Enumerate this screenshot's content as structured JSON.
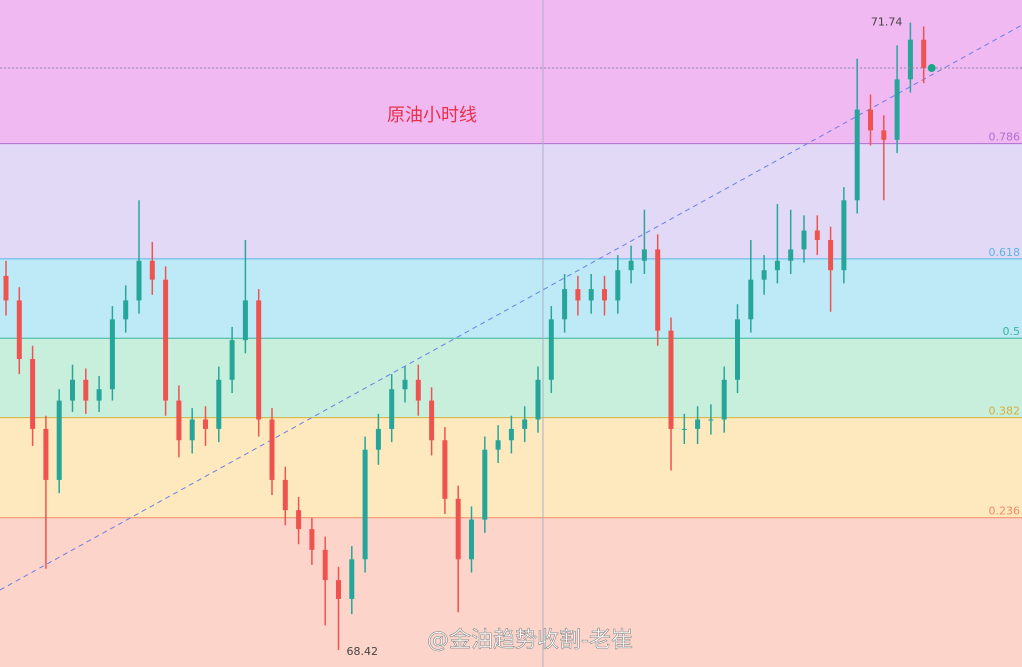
{
  "chart_data": {
    "type": "candlestick",
    "title": "原油小时线",
    "watermark": "@金油趋势收割-老崔",
    "ylim": [
      68.33,
      71.86
    ],
    "up_color": "#26a69a",
    "down_color": "#ef5350",
    "fib_levels": [
      {
        "label": "0.786",
        "value": 71.1,
        "color": "#b06fd0",
        "band": "#e2d9f6"
      },
      {
        "label": "0.618",
        "value": 70.49,
        "color": "#5ab5e8",
        "band": "#bdeaf6"
      },
      {
        "label": "0.5",
        "value": 70.07,
        "color": "#3cb39a",
        "band": "#c8eedc"
      },
      {
        "label": "0.382",
        "value": 69.65,
        "color": "#d4b040",
        "band": "#fde9bd"
      },
      {
        "label": "0.236",
        "value": 69.12,
        "color": "#f08a6a",
        "band": "#fdd4c9"
      }
    ],
    "top_band": "#f1b9f2",
    "open": [
      70.4,
      70.27,
      69.96,
      69.59,
      69.32,
      69.74,
      69.85,
      69.74,
      69.8,
      70.17,
      70.27,
      70.48,
      70.38,
      69.74,
      69.53,
      69.64,
      69.59,
      69.85,
      70.06,
      70.27,
      69.64,
      69.32,
      69.16,
      69.06,
      68.95,
      68.79,
      68.69,
      68.9,
      69.48,
      69.59,
      69.8,
      69.85,
      69.74,
      69.53,
      69.22,
      68.9,
      69.11,
      69.48,
      69.53,
      69.59,
      69.64,
      69.85,
      70.17,
      70.33,
      70.27,
      70.33,
      70.27,
      70.43,
      70.48,
      70.54,
      70.11,
      69.59,
      69.59,
      69.64,
      69.64,
      69.85,
      70.17,
      70.38,
      70.43,
      70.48,
      70.54,
      70.64,
      70.59,
      70.43,
      70.8,
      71.28,
      71.17,
      71.12,
      71.44,
      71.65
    ],
    "high": [
      70.48,
      70.34,
      70.03,
      69.66,
      69.8,
      69.93,
      69.91,
      69.87,
      70.24,
      70.35,
      70.8,
      70.58,
      70.45,
      69.82,
      69.7,
      69.71,
      69.92,
      70.13,
      70.59,
      70.33,
      69.7,
      69.39,
      69.23,
      69.12,
      69.02,
      68.86,
      68.97,
      69.55,
      69.67,
      69.88,
      69.92,
      69.93,
      69.81,
      69.6,
      69.29,
      69.18,
      69.55,
      69.61,
      69.66,
      69.71,
      69.92,
      70.24,
      70.41,
      70.4,
      70.41,
      70.4,
      70.51,
      70.56,
      70.75,
      70.62,
      70.18,
      69.67,
      69.71,
      69.72,
      69.92,
      70.25,
      70.59,
      70.51,
      70.78,
      70.75,
      70.72,
      70.72,
      70.66,
      70.87,
      71.55,
      71.36,
      71.25,
      71.62,
      71.74,
      71.72
    ],
    "low": [
      70.19,
      69.88,
      69.5,
      68.85,
      69.25,
      69.68,
      69.67,
      69.68,
      69.74,
      70.1,
      70.2,
      70.3,
      69.66,
      69.44,
      69.46,
      69.5,
      69.52,
      69.78,
      69.99,
      69.55,
      69.24,
      69.08,
      68.98,
      68.87,
      68.55,
      68.42,
      68.61,
      68.83,
      69.4,
      69.52,
      69.73,
      69.66,
      69.45,
      69.14,
      68.62,
      68.83,
      69.04,
      69.41,
      69.46,
      69.52,
      69.57,
      69.78,
      70.1,
      70.19,
      70.2,
      70.19,
      70.2,
      70.36,
      70.41,
      70.03,
      69.37,
      69.51,
      69.51,
      69.56,
      69.57,
      69.78,
      70.1,
      70.3,
      70.36,
      70.41,
      70.47,
      70.51,
      70.21,
      70.36,
      70.73,
      71.09,
      70.8,
      71.05,
      71.37,
      71.42
    ],
    "close": [
      70.27,
      69.96,
      69.59,
      69.32,
      69.74,
      69.85,
      69.74,
      69.8,
      70.17,
      70.27,
      70.48,
      70.38,
      69.74,
      69.53,
      69.64,
      69.59,
      69.85,
      70.06,
      70.27,
      69.64,
      69.32,
      69.16,
      69.06,
      68.95,
      68.79,
      68.69,
      68.9,
      69.48,
      69.59,
      69.8,
      69.85,
      69.74,
      69.53,
      69.22,
      68.9,
      69.11,
      69.48,
      69.53,
      69.59,
      69.64,
      69.85,
      70.17,
      70.33,
      70.27,
      70.33,
      70.27,
      70.43,
      70.48,
      70.54,
      70.11,
      69.59,
      69.59,
      69.64,
      69.64,
      69.85,
      70.17,
      70.38,
      70.43,
      70.48,
      70.54,
      70.64,
      70.59,
      70.43,
      70.8,
      71.28,
      71.17,
      71.12,
      71.44,
      71.65,
      71.5
    ]
  }
}
